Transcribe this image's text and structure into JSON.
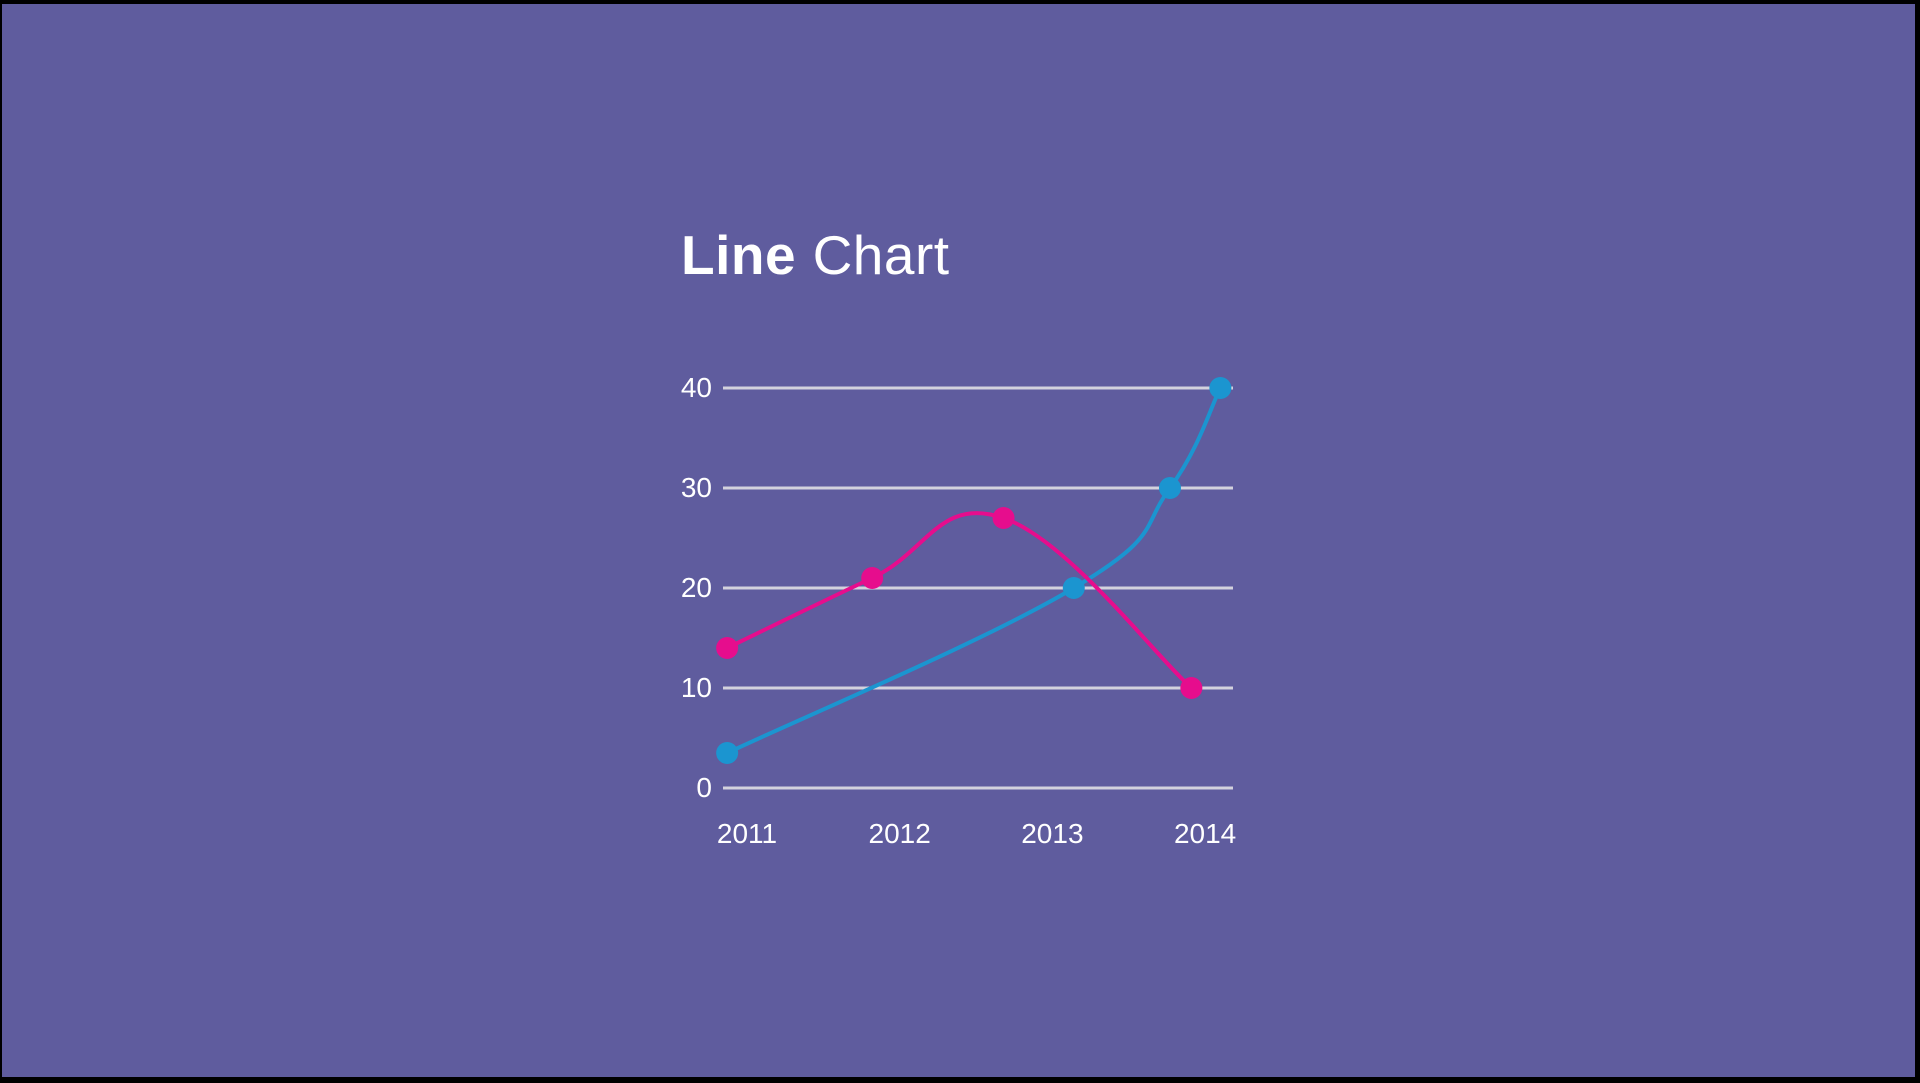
{
  "screen": {
    "background": "#5F5C9E",
    "bezel_color": "#000000"
  },
  "title": {
    "bold": "Line",
    "regular": "Chart",
    "color": "#FFFFFF"
  },
  "chart_data": {
    "type": "line",
    "title": "Line Chart",
    "x_tick_labels": [
      "2011",
      "2012",
      "2013",
      "2014"
    ],
    "y_ticks": [
      0,
      10,
      20,
      30,
      40
    ],
    "y_tick_labels": [
      "0",
      "10",
      "20",
      "30",
      "40"
    ],
    "ylim": [
      0,
      40
    ],
    "xlabel": "",
    "ylabel": "",
    "legend": "none",
    "grid": "horizontal-only",
    "curve": "smooth-spline",
    "grid_color": "#D3D2DD",
    "tick_text_color": "#FFFFFF",
    "x_unit": "category-index (0 = 2011, 1 = 2012, 2 = 2013, 3 = 2014)",
    "series": [
      {
        "name": "blue",
        "color": "#1B95D0",
        "points": [
          {
            "x": -0.13,
            "y": 3.5
          },
          {
            "x": 2.14,
            "y": 20
          },
          {
            "x": 2.77,
            "y": 30
          },
          {
            "x": 3.1,
            "y": 40
          }
        ]
      },
      {
        "name": "magenta",
        "color": "#E60D8D",
        "points": [
          {
            "x": -0.13,
            "y": 14
          },
          {
            "x": 0.82,
            "y": 21
          },
          {
            "x": 1.68,
            "y": 27
          },
          {
            "x": 2.91,
            "y": 10
          }
        ]
      }
    ]
  }
}
